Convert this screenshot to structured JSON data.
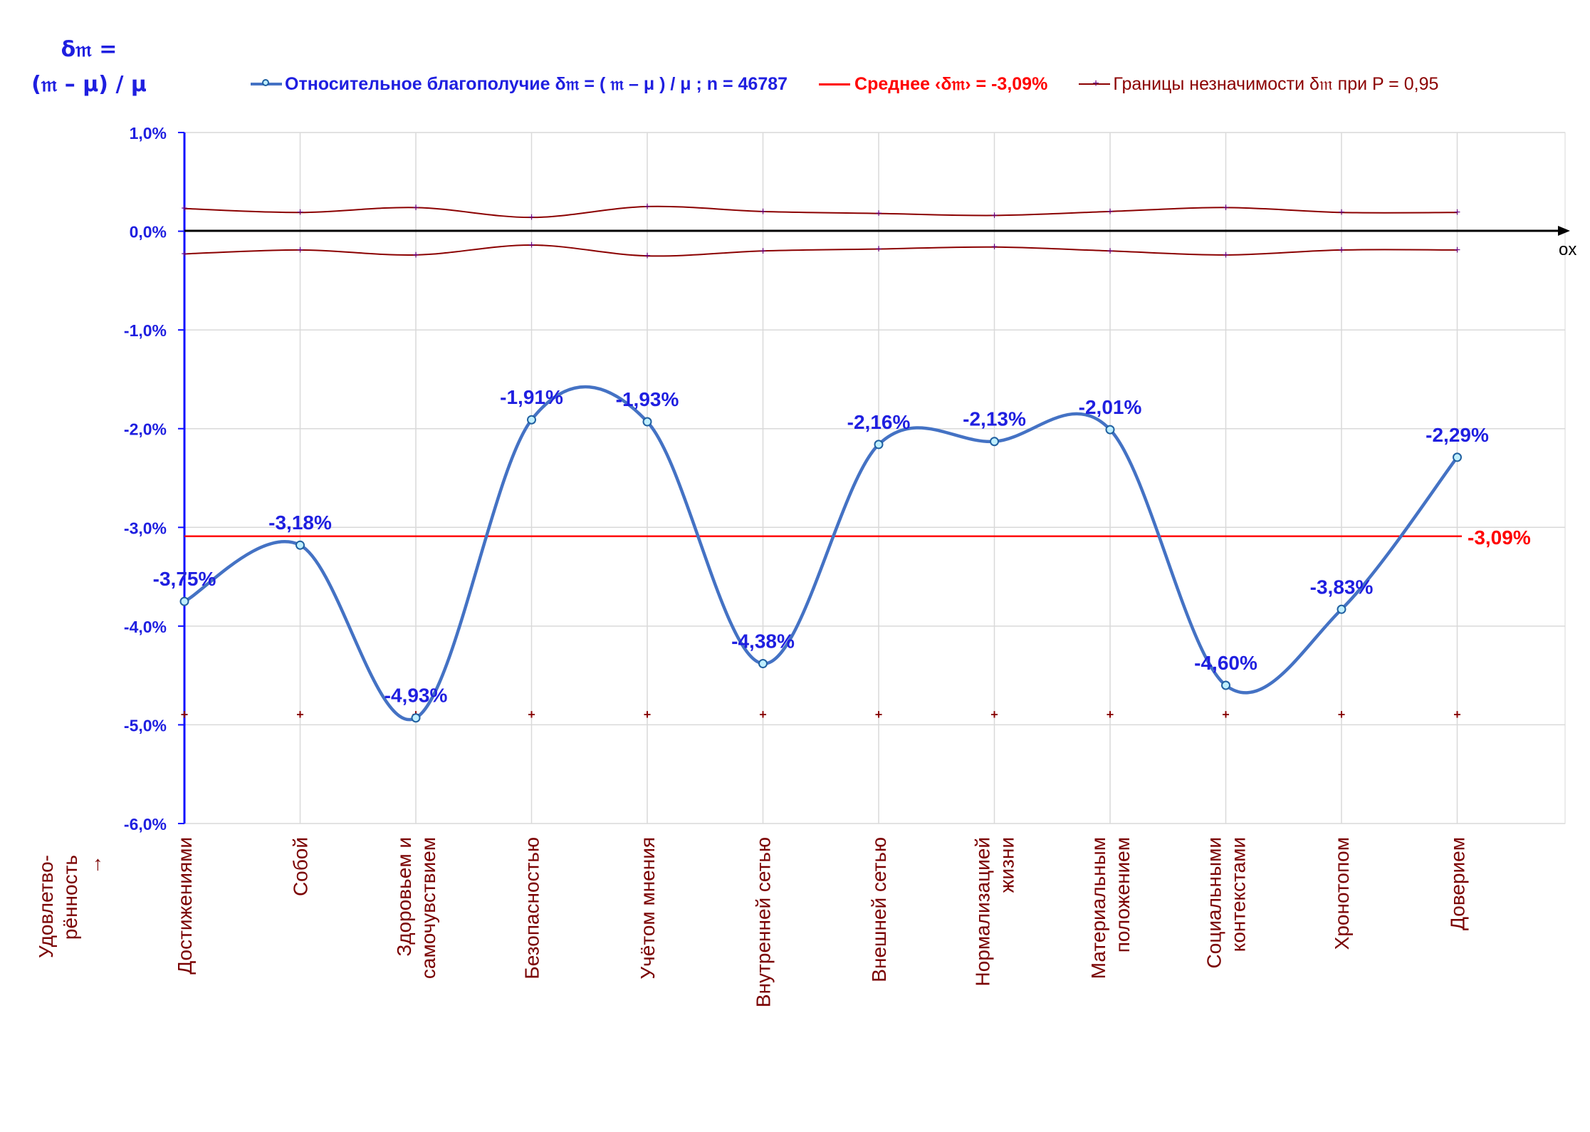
{
  "chart_data": {
    "type": "line",
    "y_axis_title_line1": "δ𝔪 =",
    "y_axis_title_line2": "(𝔪 – μ) / μ",
    "x_axis_name": "ox",
    "row_axis_label_line1": "Удовлетво-",
    "row_axis_label_line2": "рённость",
    "row_axis_label_line3": "→",
    "ylim": [
      -6.0,
      1.0
    ],
    "y_ticks": [
      "1,0%",
      "0,0%",
      "-1,0%",
      "-2,0%",
      "-3,0%",
      "-4,0%",
      "-5,0%",
      "-6,0%"
    ],
    "y_tick_values": [
      1.0,
      0.0,
      -1.0,
      -2.0,
      -3.0,
      -4.0,
      -5.0,
      -6.0
    ],
    "grid": true,
    "categories": [
      [
        "Достижениями"
      ],
      [
        "Собой"
      ],
      [
        "Здоровьем и",
        "самочувствием"
      ],
      [
        "Безопасностью"
      ],
      [
        "Учётом мнения"
      ],
      [
        "Внутренней сетью"
      ],
      [
        "Внешней сетью"
      ],
      [
        "Нормализацией",
        "жизни"
      ],
      [
        "Материальным",
        "положением"
      ],
      [
        "Социальными",
        "контекстами"
      ],
      [
        "Хронотопом"
      ],
      [
        "Доверием"
      ]
    ],
    "series": [
      {
        "name": "Относительное благополучие δ𝔪 = ( 𝔪 – μ ) / μ ; n = 46787",
        "color": "#4472c4",
        "values": [
          -3.75,
          -3.18,
          -4.93,
          -1.91,
          -1.93,
          -4.38,
          -2.16,
          -2.13,
          -2.01,
          -4.6,
          -3.83,
          -2.29
        ],
        "labels": [
          "-3,75%",
          "-3,18%",
          "-4,93%",
          "-1,91%",
          "-1,93%",
          "-4,38%",
          "-2,16%",
          "-2,13%",
          "-2,01%",
          "-4,60%",
          "-3,83%",
          "-2,29%"
        ]
      },
      {
        "name": "Среднее ‹δ𝔪› = -3,09%",
        "color": "#ff0000",
        "value": -3.09,
        "label": "-3,09%"
      },
      {
        "name": "Границы незначимости δ𝔪 при P = 0,95",
        "color": "#8b0000",
        "upper": [
          0.23,
          0.19,
          0.24,
          0.14,
          0.25,
          0.2,
          0.18,
          0.16,
          0.2,
          0.24,
          0.19,
          0.19
        ],
        "lower": [
          -0.23,
          -0.19,
          -0.24,
          -0.14,
          -0.25,
          -0.2,
          -0.18,
          -0.16,
          -0.2,
          -0.24,
          -0.19,
          -0.19
        ]
      }
    ],
    "legend_position": "top"
  }
}
